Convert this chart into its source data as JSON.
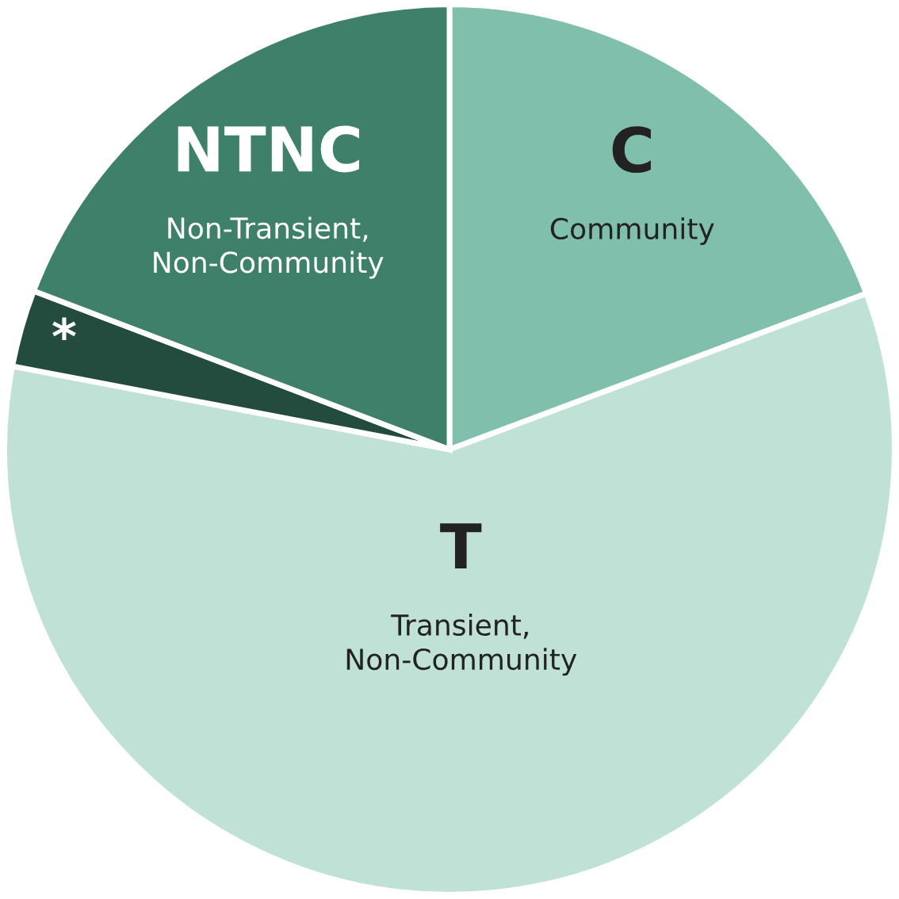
{
  "chart_data": {
    "type": "pie",
    "categories": [
      "C",
      "T",
      "*",
      "NTNC"
    ],
    "values": [
      19.3,
      58.7,
      2.8,
      19.2
    ],
    "colors": [
      "#7fbfab",
      "#c0e1d6",
      "#234b3e",
      "#3f806a"
    ],
    "annotations": [
      {
        "text": "Community",
        "x": "C"
      },
      {
        "text": "Transient,\nNon-Community",
        "x": "T"
      },
      {
        "text": "Non-Transient,\nNon-Community",
        "x": "NTNC"
      }
    ]
  }
}
